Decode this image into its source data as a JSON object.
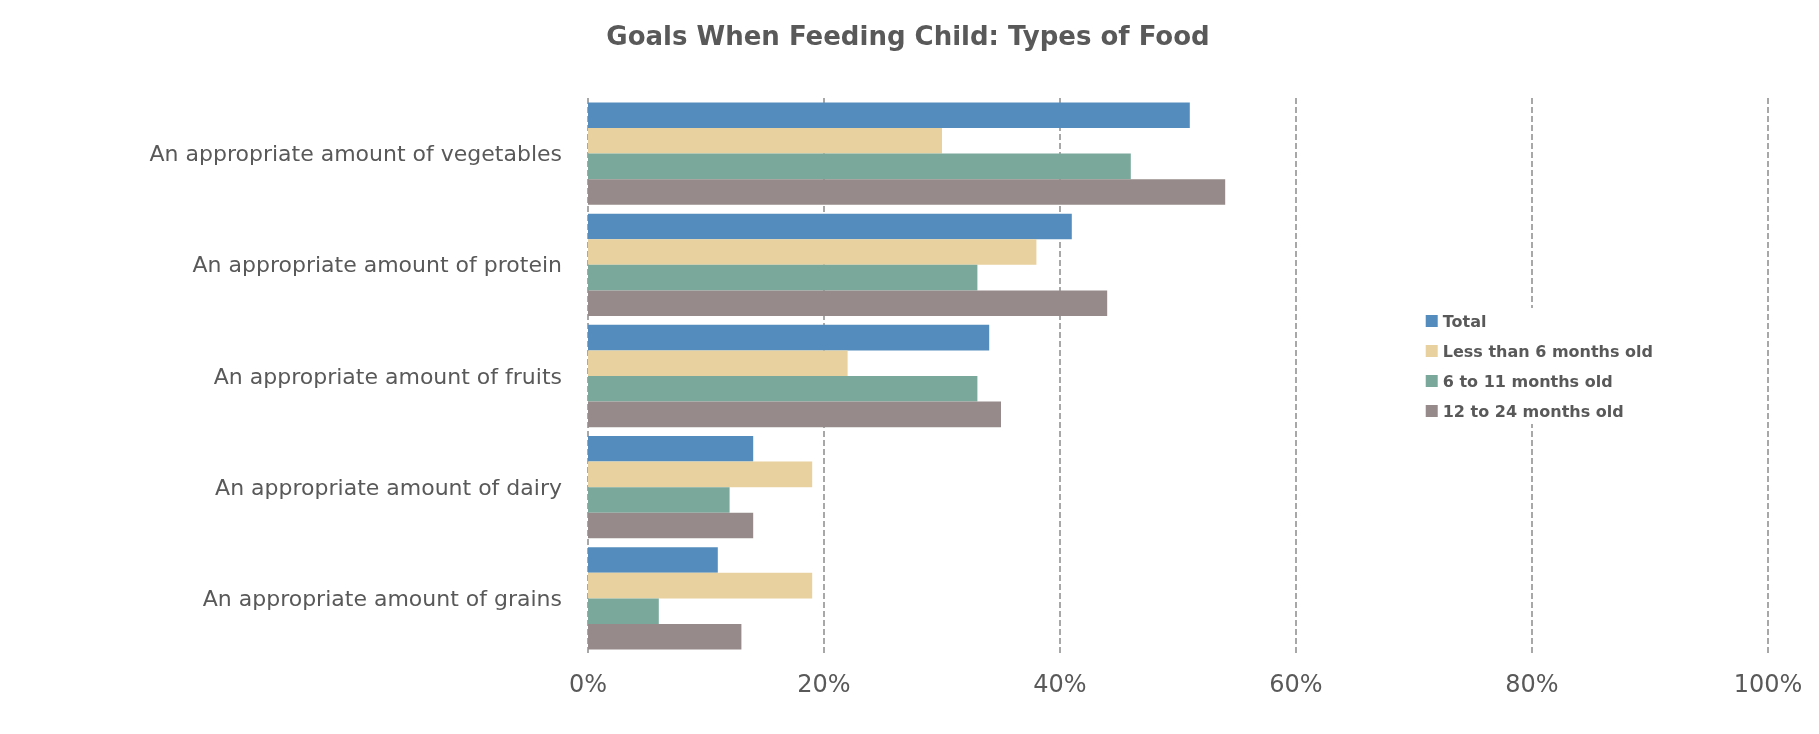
{
  "chart_data": {
    "type": "bar",
    "orientation": "horizontal",
    "title": "Goals When Feeding Child: Types of Food",
    "categories": [
      "An appropriate amount of vegetables",
      "An appropriate amount of protein",
      "An appropriate amount of fruits",
      "An appropriate amount of dairy",
      "An appropriate amount of grains"
    ],
    "series": [
      {
        "name": "Total",
        "color": "#548dbd",
        "values": [
          51,
          41,
          34,
          14,
          11
        ]
      },
      {
        "name": "Less than 6 months old",
        "color": "#e8d19e",
        "values": [
          30,
          38,
          22,
          19,
          19
        ]
      },
      {
        "name": "6 to 11 months old",
        "color": "#7aa99b",
        "values": [
          46,
          33,
          33,
          12,
          6
        ]
      },
      {
        "name": "12 to 24 months old",
        "color": "#968b8a",
        "values": [
          54,
          44,
          35,
          14,
          13
        ]
      }
    ],
    "xlim": [
      0,
      100
    ],
    "xticks": [
      {
        "value": 0,
        "label": "0%"
      },
      {
        "value": 20,
        "label": "20%"
      },
      {
        "value": 40,
        "label": "40%"
      },
      {
        "value": 60,
        "label": "60%"
      },
      {
        "value": 80,
        "label": "80%"
      },
      {
        "value": 100,
        "label": "100%"
      }
    ],
    "grid": "x",
    "line_style": "dashed",
    "legend": "right"
  }
}
